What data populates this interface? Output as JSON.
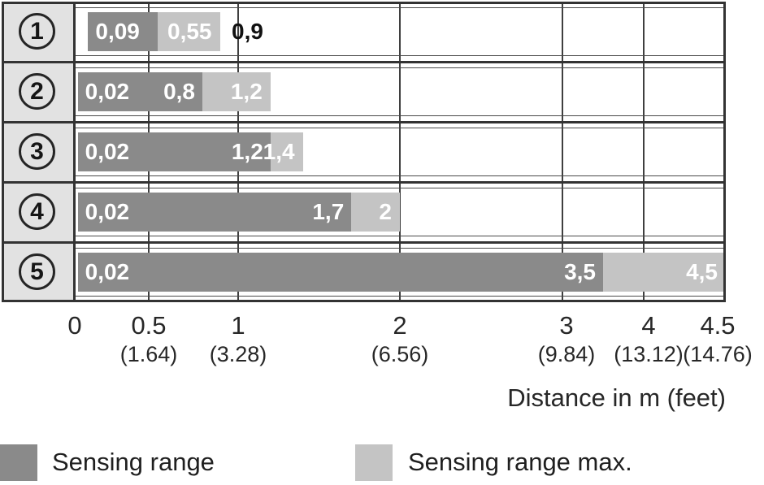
{
  "chart_data": {
    "type": "bar",
    "orientation": "horizontal-stacked",
    "title": "",
    "xlabel": "Distance in m (feet)",
    "ylabel": "",
    "xlim": [
      0,
      4.5
    ],
    "grid": true,
    "legend_position": "bottom",
    "x_ticks": [
      {
        "m": "0",
        "feet": "",
        "value": 0
      },
      {
        "m": "0.5",
        "feet": "(1.64)",
        "value": 0.5
      },
      {
        "m": "1",
        "feet": "(3.28)",
        "value": 1
      },
      {
        "m": "2",
        "feet": "(6.56)",
        "value": 2
      },
      {
        "m": "3",
        "feet": "(9.84)",
        "value": 3
      },
      {
        "m": "4",
        "feet": "(13.12)",
        "value": 4
      },
      {
        "m": "4.5",
        "feet": "(14.76)",
        "value": 4.5
      }
    ],
    "categories": [
      "1",
      "2",
      "3",
      "4",
      "5"
    ],
    "rows": [
      {
        "category": "1",
        "start": 0.09,
        "sensing_end": 0.55,
        "max_end": 0.9,
        "start_label": "0,09",
        "sensing_label": "0,55",
        "max_label": "0,9",
        "sensing_label_in_light": true,
        "max_label_outside": true
      },
      {
        "category": "2",
        "start": 0.02,
        "sensing_end": 0.8,
        "max_end": 1.2,
        "start_label": "0,02",
        "sensing_label": "0,8",
        "max_label": "1,2",
        "sensing_label_in_light": false,
        "max_label_outside": false
      },
      {
        "category": "3",
        "start": 0.02,
        "sensing_end": 1.2,
        "max_end": 1.4,
        "start_label": "0,02",
        "sensing_label": "1,2",
        "max_label": "1,4",
        "sensing_label_in_light": false,
        "max_label_outside": false
      },
      {
        "category": "4",
        "start": 0.02,
        "sensing_end": 1.7,
        "max_end": 2,
        "start_label": "0,02",
        "sensing_label": "1,7",
        "max_label": "2",
        "sensing_label_in_light": false,
        "max_label_outside": false
      },
      {
        "category": "5",
        "start": 0.02,
        "sensing_end": 3.5,
        "max_end": 4.5,
        "start_label": "0,02",
        "sensing_label": "3,5",
        "max_label": "4,5",
        "sensing_label_in_light": false,
        "max_label_outside": false
      }
    ],
    "series": [
      {
        "name": "Sensing range",
        "values": [
          0.55,
          0.8,
          1.2,
          1.7,
          3.5
        ]
      },
      {
        "name": "Sensing range max.",
        "values": [
          0.9,
          1.2,
          1.4,
          2.0,
          4.5
        ]
      }
    ],
    "legend": [
      {
        "label": "Sensing range",
        "color": "#8a8a8a"
      },
      {
        "label": "Sensing range max.",
        "color": "#c4c4c4"
      }
    ]
  },
  "colors": {
    "bar_dark": "#8a8a8a",
    "bar_light": "#c4c4c4",
    "category_bg": "#e2e2e2",
    "grid_border": "#333333",
    "text": "#272727",
    "bar_label_white": "#ffffff",
    "bar_label_black": "#111111"
  }
}
